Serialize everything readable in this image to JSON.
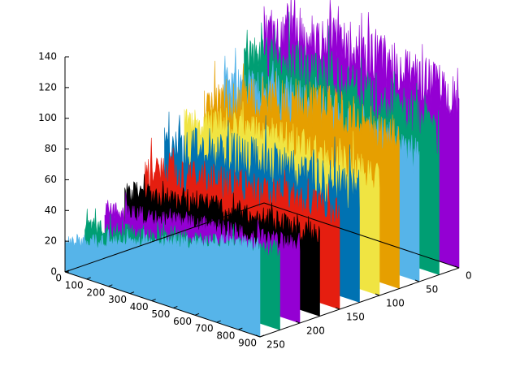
{
  "chart_data": {
    "type": "area",
    "title": "",
    "xlabel": "",
    "ylabel": "",
    "zlabel": "",
    "grid": false,
    "legend": "none",
    "x_ticks": [
      "0",
      "100",
      "200",
      "300",
      "400",
      "500",
      "600",
      "700",
      "800",
      "900"
    ],
    "y_ticks": [
      "0",
      "50",
      "100",
      "150",
      "200",
      "250"
    ],
    "z_ticks": [
      "0",
      "20",
      "40",
      "60",
      "80",
      "100",
      "120",
      "140"
    ],
    "xlim": [
      0,
      900
    ],
    "ylim": [
      0,
      250
    ],
    "zlim": [
      0,
      140
    ],
    "series": [
      {
        "y": 0,
        "color": "#9400d3",
        "level": [
          112,
          118,
          120,
          120,
          118,
          115,
          112,
          108
        ],
        "noise": 22
      },
      {
        "y": 25,
        "color": "#009e73",
        "level": [
          98,
          104,
          106,
          106,
          104,
          100,
          96,
          92
        ],
        "noise": 20
      },
      {
        "y": 50,
        "color": "#56b4e9",
        "level": [
          86,
          90,
          93,
          92,
          90,
          87,
          84,
          80
        ],
        "noise": 18
      },
      {
        "y": 75,
        "color": "#e69f00",
        "level": [
          76,
          86,
          94,
          98,
          100,
          102,
          100,
          98
        ],
        "noise": 20
      },
      {
        "y": 100,
        "color": "#f0e442",
        "level": [
          70,
          76,
          80,
          82,
          82,
          80,
          78,
          76
        ],
        "noise": 14
      },
      {
        "y": 125,
        "color": "#0072b2",
        "level": [
          58,
          64,
          68,
          70,
          72,
          72,
          72,
          72
        ],
        "noise": 18
      },
      {
        "y": 150,
        "color": "#e51e10",
        "level": [
          48,
          52,
          56,
          58,
          60,
          62,
          62,
          62
        ],
        "noise": 14
      },
      {
        "y": 175,
        "color": "#000000",
        "level": [
          38,
          42,
          46,
          48,
          50,
          52,
          52,
          52
        ],
        "noise": 10
      },
      {
        "y": 200,
        "color": "#9400d3",
        "level": [
          32,
          34,
          38,
          42,
          44,
          46,
          48,
          50
        ],
        "noise": 8
      },
      {
        "y": 225,
        "color": "#009e73",
        "level": [
          26,
          28,
          32,
          36,
          40,
          44,
          48,
          52
        ],
        "noise": 8
      },
      {
        "y": 250,
        "color": "#56b4e9",
        "level": [
          20,
          26,
          32,
          38,
          44,
          50,
          56,
          60
        ],
        "noise": 6
      }
    ]
  }
}
